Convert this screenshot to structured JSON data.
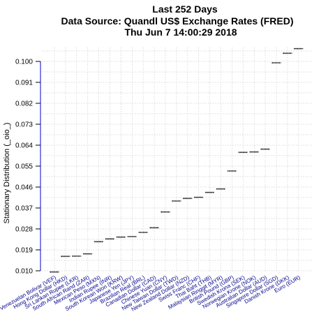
{
  "chart_data": {
    "type": "scatter",
    "title_lines": [
      "Last 252 Days",
      "Data Source: Quandl US$ Exchange Rates (FRED)",
      "Thu Jun  7 14:00:29 2018"
    ],
    "ylabel": "Stationary Distribution (_oio_)",
    "xlabel": "",
    "ylim": [
      0.01,
      0.106
    ],
    "yticks": [
      0.01,
      0.019,
      0.028,
      0.037,
      0.046,
      0.055,
      0.064,
      0.073,
      0.082,
      0.091,
      0.1
    ],
    "yticks_labels": [
      "0.010",
      "0.019",
      "0.028",
      "0.037",
      "0.046",
      "0.055",
      "0.064",
      "0.073",
      "0.082",
      "0.091",
      "0.100"
    ],
    "grid": true,
    "categories": [
      "Venezuelan Bolivar (VEF)",
      "Hong Kong Dollar (HKD)",
      "Sri Lankan Rupee (LKR)",
      "South African Rand (ZAR)",
      "Mexican Peso (MXN)",
      "Indian Rupee (INR)",
      "South Korean Won (KRW)",
      "Japanese Yen (JPY)",
      "Brazilian Real (BRL)",
      "Canadian Dollar (CAD)",
      "Chinese Yuan (CNY)",
      "New Taiwan Dollar (TWD)",
      "New Zealand Dollar (NZD)",
      "Swiss Franc (CHF)",
      "Thai Baht (THB)",
      "Malaysian Ringgit (MYR)",
      "British Pound (GBP)",
      "Swedish Krona (SEK)",
      "Norwegian Krone (NOK)",
      "Australian Dollar (AUD)",
      "Singapore Dollar (SGD)",
      "Danish Krone (DKK)",
      "Euro (EUR)"
    ],
    "values": [
      0.0095,
      0.0162,
      0.0163,
      0.0173,
      0.0225,
      0.0237,
      0.0245,
      0.0247,
      0.0265,
      0.0285,
      0.0353,
      0.04,
      0.0411,
      0.0416,
      0.0437,
      0.0452,
      0.0529,
      0.0609,
      0.0611,
      0.0623,
      0.0994,
      0.1035,
      0.1055
    ]
  },
  "colors": {
    "axis": "#0000cd",
    "labels": "#00008b",
    "grid": "#cccccc",
    "marks": "#000000"
  }
}
